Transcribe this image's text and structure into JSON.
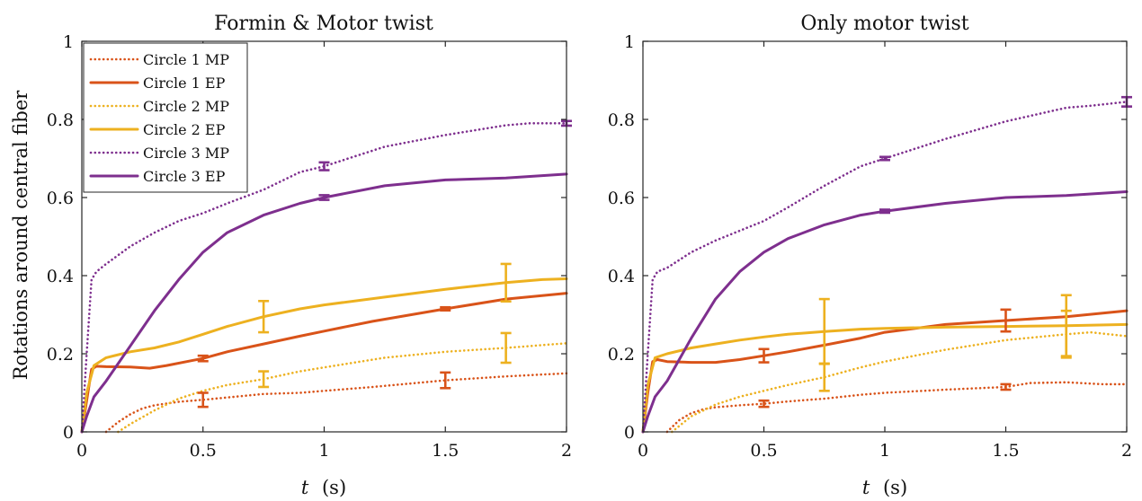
{
  "chart_data": [
    {
      "type": "line",
      "title": "Formin & Motor twist",
      "xlabel_var": "t",
      "xlabel_unit": "(s)",
      "ylabel": "Rotations around central fiber",
      "xlim": [
        0,
        2
      ],
      "ylim": [
        0,
        1
      ],
      "xticks": [
        "0",
        "0.5",
        "1",
        "1.5",
        "2"
      ],
      "yticks": [
        "0",
        "0.2",
        "0.4",
        "0.6",
        "0.8",
        "1"
      ],
      "grid": false,
      "legend_position": "top-left",
      "series": [
        {
          "name": "Circle 1 MP",
          "color": "#d95319",
          "dash": "dotted",
          "x": [
            0.1,
            0.15,
            0.2,
            0.25,
            0.3,
            0.4,
            0.5,
            0.6,
            0.75,
            0.9,
            1.0,
            1.2,
            1.5,
            1.75,
            2.0
          ],
          "y": [
            0.0,
            0.025,
            0.045,
            0.06,
            0.068,
            0.077,
            0.082,
            0.088,
            0.097,
            0.1,
            0.105,
            0.115,
            0.132,
            0.142,
            0.15
          ],
          "errorbars": [
            {
              "x": 0.5,
              "y": 0.082,
              "err": 0.018
            },
            {
              "x": 1.5,
              "y": 0.132,
              "err": 0.02
            }
          ]
        },
        {
          "name": "Circle 1 EP",
          "color": "#d95319",
          "dash": "solid",
          "x": [
            0.0,
            0.02,
            0.04,
            0.06,
            0.1,
            0.2,
            0.28,
            0.35,
            0.45,
            0.5,
            0.6,
            0.75,
            0.9,
            1.0,
            1.2,
            1.5,
            1.75,
            2.0
          ],
          "y": [
            0.0,
            0.08,
            0.16,
            0.168,
            0.167,
            0.166,
            0.163,
            0.17,
            0.182,
            0.188,
            0.205,
            0.225,
            0.245,
            0.258,
            0.283,
            0.315,
            0.34,
            0.355
          ],
          "errorbars": [
            {
              "x": 0.5,
              "y": 0.188,
              "err": 0.007
            },
            {
              "x": 1.5,
              "y": 0.315,
              "err": 0.004
            }
          ]
        },
        {
          "name": "Circle 2 MP",
          "color": "#edb120",
          "dash": "dotted",
          "x": [
            0.15,
            0.2,
            0.3,
            0.4,
            0.5,
            0.6,
            0.75,
            0.9,
            1.0,
            1.25,
            1.5,
            1.75,
            2.0
          ],
          "y": [
            0.0,
            0.02,
            0.055,
            0.085,
            0.105,
            0.12,
            0.135,
            0.155,
            0.165,
            0.19,
            0.205,
            0.215,
            0.227
          ],
          "errorbars": [
            {
              "x": 0.75,
              "y": 0.135,
              "err": 0.02
            },
            {
              "x": 1.75,
              "y": 0.215,
              "err": 0.038
            }
          ]
        },
        {
          "name": "Circle 2 EP",
          "color": "#edb120",
          "dash": "solid",
          "x": [
            0.0,
            0.02,
            0.05,
            0.1,
            0.2,
            0.3,
            0.4,
            0.5,
            0.6,
            0.75,
            0.9,
            1.0,
            1.25,
            1.5,
            1.75,
            1.9,
            2.0
          ],
          "y": [
            0.0,
            0.1,
            0.17,
            0.19,
            0.205,
            0.215,
            0.23,
            0.25,
            0.27,
            0.295,
            0.315,
            0.325,
            0.345,
            0.365,
            0.382,
            0.39,
            0.392
          ],
          "errorbars": [
            {
              "x": 0.75,
              "y": 0.295,
              "err": 0.04
            },
            {
              "x": 1.75,
              "y": 0.382,
              "err": 0.048
            }
          ]
        },
        {
          "name": "Circle 3 MP",
          "color": "#7e2f8e",
          "dash": "dotted",
          "x": [
            0.0,
            0.02,
            0.04,
            0.06,
            0.1,
            0.2,
            0.3,
            0.4,
            0.5,
            0.6,
            0.75,
            0.9,
            1.0,
            1.25,
            1.5,
            1.75,
            1.85,
            2.0
          ],
          "y": [
            0.0,
            0.2,
            0.39,
            0.41,
            0.43,
            0.475,
            0.51,
            0.54,
            0.56,
            0.585,
            0.62,
            0.665,
            0.68,
            0.73,
            0.76,
            0.785,
            0.79,
            0.79
          ],
          "errorbars": [
            {
              "x": 1.0,
              "y": 0.68,
              "err": 0.01
            },
            {
              "x": 2.0,
              "y": 0.79,
              "err": 0.006
            }
          ]
        },
        {
          "name": "Circle 3 EP",
          "color": "#7e2f8e",
          "dash": "solid",
          "x": [
            0.0,
            0.02,
            0.05,
            0.1,
            0.2,
            0.3,
            0.4,
            0.5,
            0.6,
            0.75,
            0.9,
            1.0,
            1.25,
            1.5,
            1.75,
            2.0
          ],
          "y": [
            0.0,
            0.04,
            0.09,
            0.13,
            0.22,
            0.31,
            0.39,
            0.46,
            0.51,
            0.555,
            0.585,
            0.6,
            0.63,
            0.645,
            0.65,
            0.66
          ],
          "errorbars": [
            {
              "x": 1.0,
              "y": 0.6,
              "err": 0.006
            }
          ]
        }
      ]
    },
    {
      "type": "line",
      "title": "Only motor twist",
      "xlabel_var": "t",
      "xlabel_unit": "(s)",
      "ylabel": "",
      "xlim": [
        0,
        2
      ],
      "ylim": [
        0,
        1
      ],
      "xticks": [
        "0",
        "0.5",
        "1",
        "1.5",
        "2"
      ],
      "yticks": [
        "0",
        "0.2",
        "0.4",
        "0.6",
        "0.8",
        "1"
      ],
      "grid": false,
      "series": [
        {
          "name": "Circle 1 MP",
          "color": "#d95319",
          "dash": "dotted",
          "x": [
            0.1,
            0.15,
            0.2,
            0.25,
            0.3,
            0.4,
            0.5,
            0.6,
            0.75,
            0.9,
            1.0,
            1.25,
            1.5,
            1.6,
            1.75,
            1.9,
            2.0
          ],
          "y": [
            0.0,
            0.03,
            0.048,
            0.058,
            0.063,
            0.068,
            0.072,
            0.078,
            0.085,
            0.095,
            0.1,
            0.108,
            0.115,
            0.125,
            0.127,
            0.122,
            0.122
          ],
          "errorbars": [
            {
              "x": 0.5,
              "y": 0.072,
              "err": 0.008
            },
            {
              "x": 1.5,
              "y": 0.115,
              "err": 0.007
            }
          ]
        },
        {
          "name": "Circle 1 EP",
          "color": "#d95319",
          "dash": "solid",
          "x": [
            0.0,
            0.02,
            0.04,
            0.06,
            0.1,
            0.2,
            0.3,
            0.4,
            0.5,
            0.6,
            0.75,
            0.9,
            1.0,
            1.25,
            1.5,
            1.75,
            2.0
          ],
          "y": [
            0.0,
            0.1,
            0.18,
            0.185,
            0.18,
            0.178,
            0.178,
            0.185,
            0.195,
            0.205,
            0.222,
            0.24,
            0.255,
            0.275,
            0.285,
            0.295,
            0.31
          ],
          "errorbars": [
            {
              "x": 0.5,
              "y": 0.195,
              "err": 0.017
            },
            {
              "x": 1.5,
              "y": 0.285,
              "err": 0.028
            }
          ]
        },
        {
          "name": "Circle 2 MP",
          "color": "#edb120",
          "dash": "dotted",
          "x": [
            0.12,
            0.2,
            0.3,
            0.4,
            0.5,
            0.6,
            0.75,
            0.9,
            1.0,
            1.25,
            1.5,
            1.75,
            1.85,
            2.0
          ],
          "y": [
            0.0,
            0.04,
            0.07,
            0.09,
            0.105,
            0.12,
            0.14,
            0.165,
            0.18,
            0.21,
            0.235,
            0.25,
            0.255,
            0.245
          ],
          "errorbars": [
            {
              "x": 0.75,
              "y": 0.14,
              "err": 0.035
            },
            {
              "x": 1.75,
              "y": 0.25,
              "err": 0.06
            }
          ]
        },
        {
          "name": "Circle 2 EP",
          "color": "#edb120",
          "dash": "solid",
          "x": [
            0.0,
            0.02,
            0.05,
            0.1,
            0.2,
            0.3,
            0.4,
            0.5,
            0.6,
            0.75,
            0.9,
            1.0,
            1.25,
            1.5,
            1.75,
            2.0
          ],
          "y": [
            0.0,
            0.12,
            0.19,
            0.2,
            0.215,
            0.225,
            0.235,
            0.243,
            0.25,
            0.257,
            0.263,
            0.265,
            0.268,
            0.27,
            0.272,
            0.275
          ],
          "errorbars": [
            {
              "x": 0.75,
              "y": 0.257,
              "err": 0.083
            },
            {
              "x": 1.75,
              "y": 0.272,
              "err": 0.078
            }
          ]
        },
        {
          "name": "Circle 3 MP",
          "color": "#7e2f8e",
          "dash": "dotted",
          "x": [
            0.0,
            0.02,
            0.04,
            0.06,
            0.1,
            0.2,
            0.3,
            0.4,
            0.5,
            0.6,
            0.75,
            0.9,
            1.0,
            1.25,
            1.5,
            1.75,
            1.85,
            2.0
          ],
          "y": [
            0.0,
            0.2,
            0.39,
            0.41,
            0.42,
            0.46,
            0.49,
            0.515,
            0.54,
            0.575,
            0.63,
            0.68,
            0.7,
            0.75,
            0.795,
            0.83,
            0.835,
            0.845
          ],
          "errorbars": [
            {
              "x": 1.0,
              "y": 0.7,
              "err": 0.004
            },
            {
              "x": 2.0,
              "y": 0.845,
              "err": 0.012
            }
          ]
        },
        {
          "name": "Circle 3 EP",
          "color": "#7e2f8e",
          "dash": "solid",
          "x": [
            0.0,
            0.02,
            0.05,
            0.1,
            0.2,
            0.3,
            0.4,
            0.5,
            0.6,
            0.75,
            0.9,
            1.0,
            1.25,
            1.5,
            1.75,
            2.0
          ],
          "y": [
            0.0,
            0.04,
            0.09,
            0.13,
            0.24,
            0.34,
            0.41,
            0.46,
            0.495,
            0.53,
            0.555,
            0.565,
            0.585,
            0.6,
            0.605,
            0.615
          ],
          "errorbars": [
            {
              "x": 1.0,
              "y": 0.565,
              "err": 0.004
            }
          ]
        }
      ]
    }
  ]
}
